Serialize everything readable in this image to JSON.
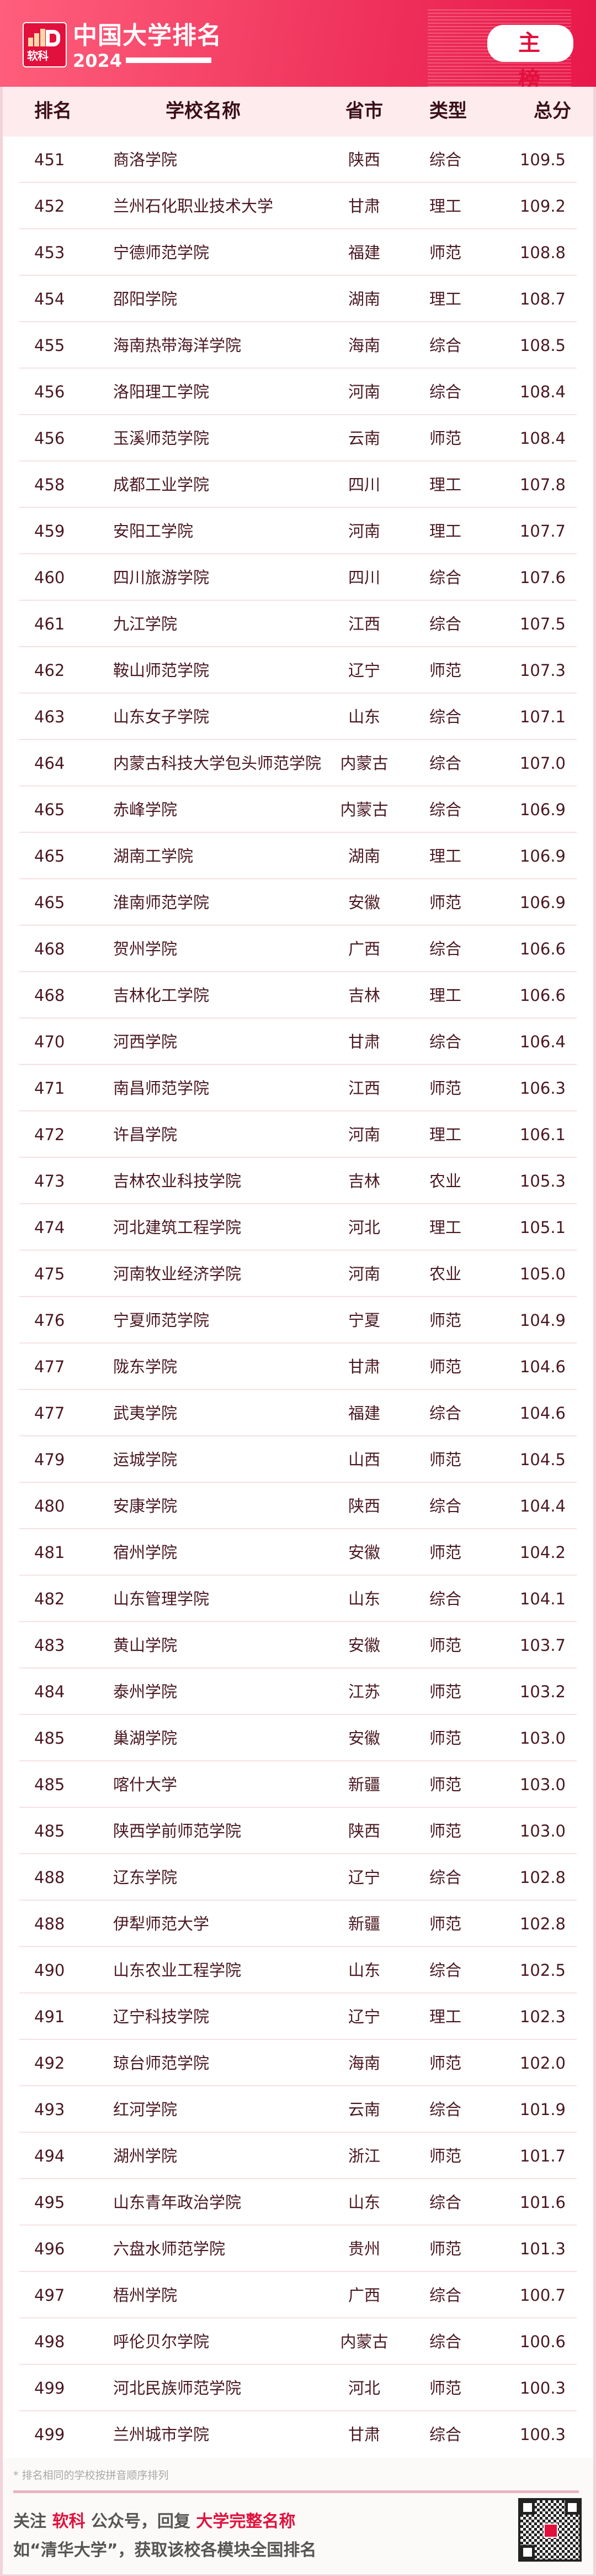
{
  "header": {
    "logo_text": "软科",
    "title": "中国大学排名",
    "year": "2024",
    "badge": "主 榜"
  },
  "columns": [
    "排名",
    "学校名称",
    "省市",
    "类型",
    "总分"
  ],
  "rows": [
    [
      "451",
      "商洛学院",
      "陕西",
      "综合",
      "109.5"
    ],
    [
      "452",
      "兰州石化职业技术大学",
      "甘肃",
      "理工",
      "109.2"
    ],
    [
      "453",
      "宁德师范学院",
      "福建",
      "师范",
      "108.8"
    ],
    [
      "454",
      "邵阳学院",
      "湖南",
      "理工",
      "108.7"
    ],
    [
      "455",
      "海南热带海洋学院",
      "海南",
      "综合",
      "108.5"
    ],
    [
      "456",
      "洛阳理工学院",
      "河南",
      "综合",
      "108.4"
    ],
    [
      "456",
      "玉溪师范学院",
      "云南",
      "师范",
      "108.4"
    ],
    [
      "458",
      "成都工业学院",
      "四川",
      "理工",
      "107.8"
    ],
    [
      "459",
      "安阳工学院",
      "河南",
      "理工",
      "107.7"
    ],
    [
      "460",
      "四川旅游学院",
      "四川",
      "综合",
      "107.6"
    ],
    [
      "461",
      "九江学院",
      "江西",
      "综合",
      "107.5"
    ],
    [
      "462",
      "鞍山师范学院",
      "辽宁",
      "师范",
      "107.3"
    ],
    [
      "463",
      "山东女子学院",
      "山东",
      "综合",
      "107.1"
    ],
    [
      "464",
      "内蒙古科技大学包头师范学院",
      "内蒙古",
      "综合",
      "107.0"
    ],
    [
      "465",
      "赤峰学院",
      "内蒙古",
      "综合",
      "106.9"
    ],
    [
      "465",
      "湖南工学院",
      "湖南",
      "理工",
      "106.9"
    ],
    [
      "465",
      "淮南师范学院",
      "安徽",
      "师范",
      "106.9"
    ],
    [
      "468",
      "贺州学院",
      "广西",
      "综合",
      "106.6"
    ],
    [
      "468",
      "吉林化工学院",
      "吉林",
      "理工",
      "106.6"
    ],
    [
      "470",
      "河西学院",
      "甘肃",
      "综合",
      "106.4"
    ],
    [
      "471",
      "南昌师范学院",
      "江西",
      "师范",
      "106.3"
    ],
    [
      "472",
      "许昌学院",
      "河南",
      "理工",
      "106.1"
    ],
    [
      "473",
      "吉林农业科技学院",
      "吉林",
      "农业",
      "105.3"
    ],
    [
      "474",
      "河北建筑工程学院",
      "河北",
      "理工",
      "105.1"
    ],
    [
      "475",
      "河南牧业经济学院",
      "河南",
      "农业",
      "105.0"
    ],
    [
      "476",
      "宁夏师范学院",
      "宁夏",
      "师范",
      "104.9"
    ],
    [
      "477",
      "陇东学院",
      "甘肃",
      "师范",
      "104.6"
    ],
    [
      "477",
      "武夷学院",
      "福建",
      "综合",
      "104.6"
    ],
    [
      "479",
      "运城学院",
      "山西",
      "师范",
      "104.5"
    ],
    [
      "480",
      "安康学院",
      "陕西",
      "综合",
      "104.4"
    ],
    [
      "481",
      "宿州学院",
      "安徽",
      "师范",
      "104.2"
    ],
    [
      "482",
      "山东管理学院",
      "山东",
      "综合",
      "104.1"
    ],
    [
      "483",
      "黄山学院",
      "安徽",
      "师范",
      "103.7"
    ],
    [
      "484",
      "泰州学院",
      "江苏",
      "师范",
      "103.2"
    ],
    [
      "485",
      "巢湖学院",
      "安徽",
      "师范",
      "103.0"
    ],
    [
      "485",
      "喀什大学",
      "新疆",
      "师范",
      "103.0"
    ],
    [
      "485",
      "陕西学前师范学院",
      "陕西",
      "师范",
      "103.0"
    ],
    [
      "488",
      "辽东学院",
      "辽宁",
      "综合",
      "102.8"
    ],
    [
      "488",
      "伊犁师范大学",
      "新疆",
      "师范",
      "102.8"
    ],
    [
      "490",
      "山东农业工程学院",
      "山东",
      "综合",
      "102.5"
    ],
    [
      "491",
      "辽宁科技学院",
      "辽宁",
      "理工",
      "102.3"
    ],
    [
      "492",
      "琼台师范学院",
      "海南",
      "师范",
      "102.0"
    ],
    [
      "493",
      "红河学院",
      "云南",
      "综合",
      "101.9"
    ],
    [
      "494",
      "湖州学院",
      "浙江",
      "师范",
      "101.7"
    ],
    [
      "495",
      "山东青年政治学院",
      "山东",
      "综合",
      "101.6"
    ],
    [
      "496",
      "六盘水师范学院",
      "贵州",
      "师范",
      "101.3"
    ],
    [
      "497",
      "梧州学院",
      "广西",
      "综合",
      "100.7"
    ],
    [
      "498",
      "呼伦贝尔学院",
      "内蒙古",
      "综合",
      "100.6"
    ],
    [
      "499",
      "河北民族师范学院",
      "河北",
      "师范",
      "100.3"
    ],
    [
      "499",
      "兰州城市学院",
      "甘肃",
      "综合",
      "100.3"
    ]
  ],
  "footer": {
    "note": "* 排名相同的学校按拼音顺序排列",
    "cta_1": "关注",
    "cta_brand": "软科",
    "cta_2": "公众号，回复",
    "cta_keyword": "大学完整名称",
    "cta_line2": "如“清华大学”，获取该校各模块全国排名"
  },
  "colors": {
    "brand_red": "#e2103c",
    "text": "#4a1822",
    "header_bg": "#feebee"
  }
}
